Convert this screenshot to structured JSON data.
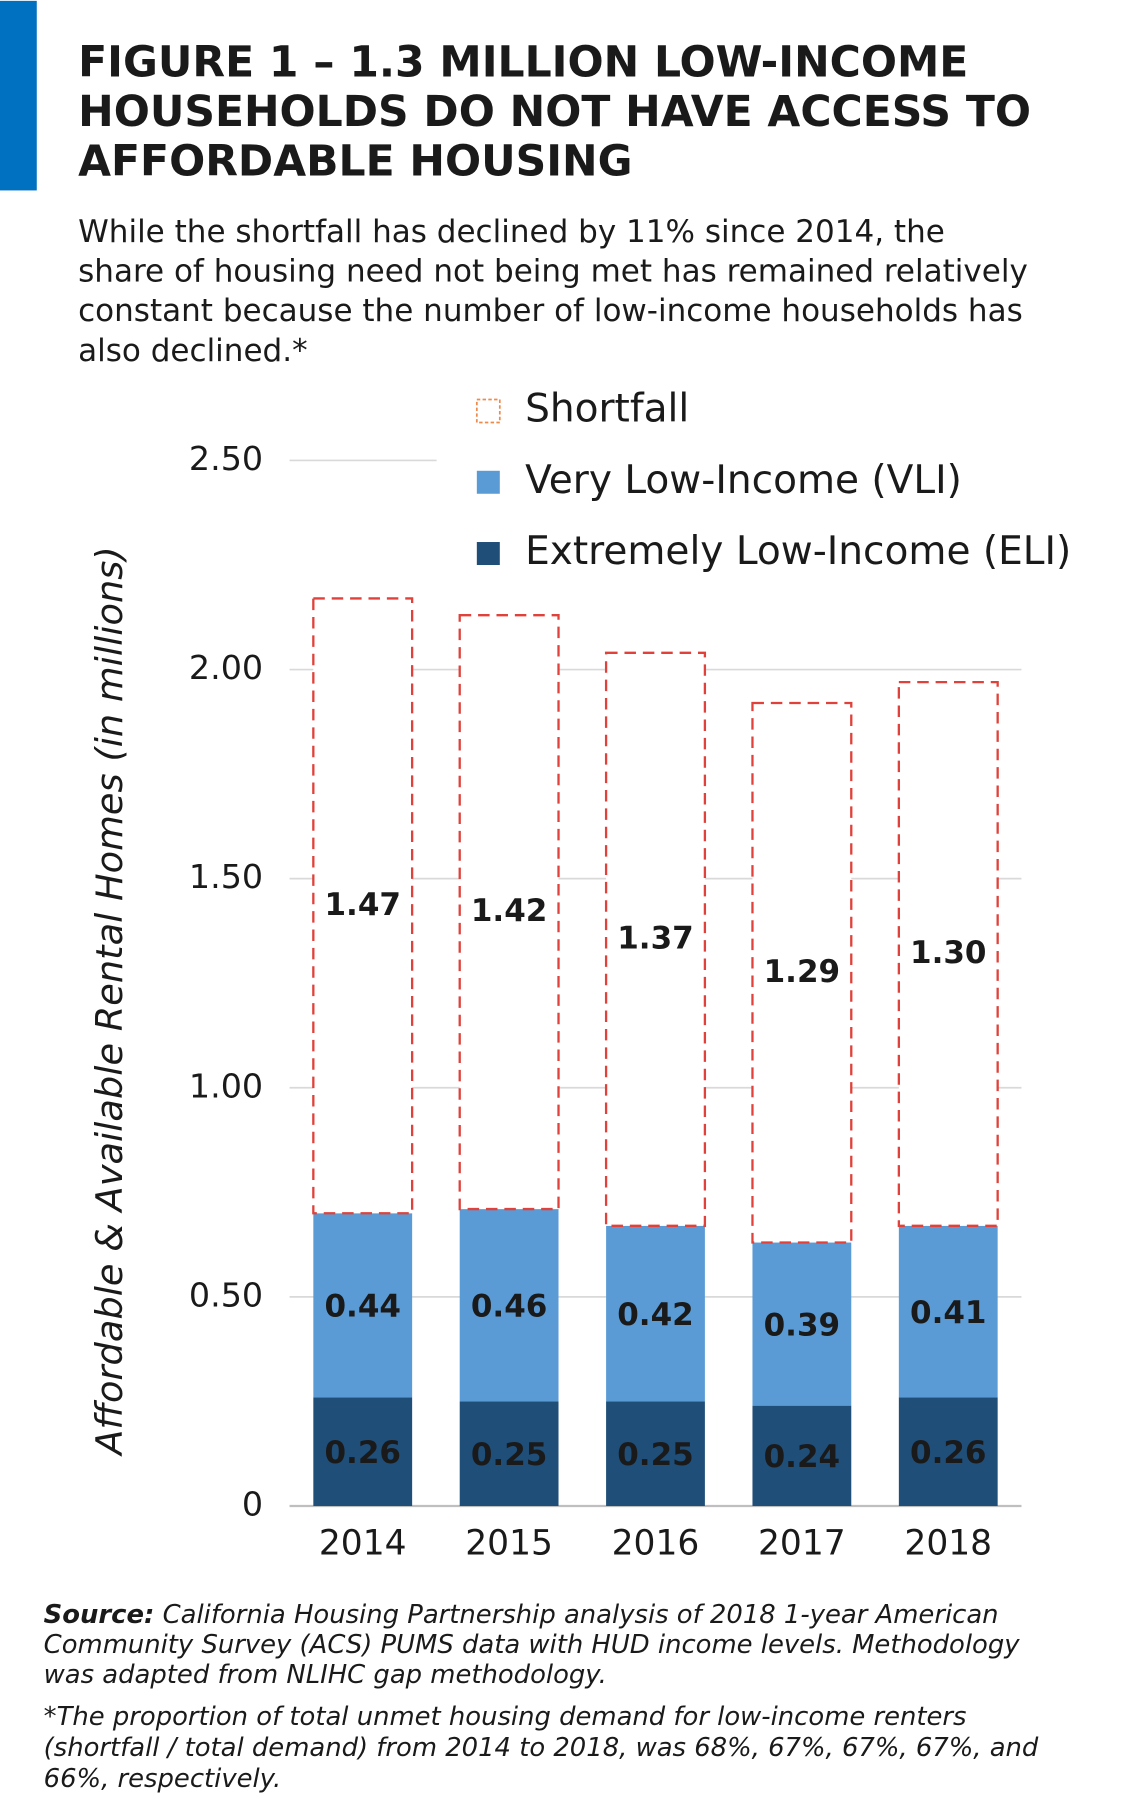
{
  "chart_data": {
    "type": "stacked-bar",
    "title": [
      "FIGURE 1 – 1.3 MILLION LOW-INCOME",
      "HOUSEHOLDS DO NOT HAVE ACCESS TO",
      "AFFORDABLE HOUSING"
    ],
    "subtitle": [
      "While the shortfall has declined by 11% since 2014, the",
      "share of housing need not being met has remained relatively",
      "constant because the number of low-income households has",
      "also declined.*"
    ],
    "y_label": "Affordable & Available Rental Homes (in millions)",
    "categories": [
      "2014",
      "2015",
      "2016",
      "2017",
      "2018"
    ],
    "series": [
      {
        "name": "Extremely Low-Income (ELI)",
        "color": "#1f4e79",
        "values": [
          0.26,
          0.25,
          0.25,
          0.24,
          0.26
        ]
      },
      {
        "name": "Very Low-Income (VLI)",
        "color": "#5b9bd5",
        "values": [
          0.44,
          0.46,
          0.42,
          0.39,
          0.41
        ]
      },
      {
        "name": "Shortfall",
        "color": "#e0413a",
        "dashed": true,
        "values": [
          1.47,
          1.42,
          1.37,
          1.29,
          1.3
        ],
        "value_labels": [
          "1.47",
          "1.42",
          "1.37",
          "1.29",
          "1.30"
        ]
      }
    ],
    "ylim": [
      0,
      2.5
    ],
    "yticks": [
      0,
      {
        "value": 0.5,
        "label": "0.50"
      },
      {
        "value": 1,
        "label": "1.00"
      },
      {
        "value": 1.5,
        "label": "1.50"
      },
      {
        "value": 2,
        "label": "2.00"
      },
      {
        "value": 2.5,
        "label": "2.50"
      }
    ],
    "grid": true,
    "source_label": "Source:",
    "source": [
      " California Housing Partnership analysis of 2018 1-year American",
      "Community Survey (ACS) PUMS data with HUD income levels. Methodology",
      "was adapted from NLIHC gap methodology."
    ],
    "note": [
      "*The proportion of total unmet housing demand for low-income renters",
      "(shortfall / total demand) from 2014 to 2018, was 68%, 67%, 67%, 67%, and",
      "66%, respectively."
    ]
  }
}
